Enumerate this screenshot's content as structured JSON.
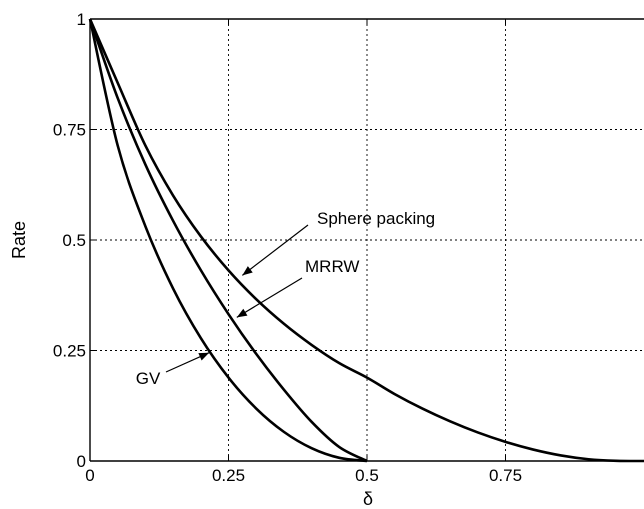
{
  "chart_data": {
    "type": "line",
    "xlabel": "δ",
    "ylabel": "Rate",
    "xlim": [
      0,
      1
    ],
    "ylim": [
      0,
      1
    ],
    "grid": true,
    "xticks": [
      {
        "value": 0,
        "label": "0"
      },
      {
        "value": 0.25,
        "label": "0.25"
      },
      {
        "value": 0.5,
        "label": "0.5"
      },
      {
        "value": 0.75,
        "label": "0.75"
      }
    ],
    "yticks": [
      {
        "value": 0,
        "label": "0"
      },
      {
        "value": 0.25,
        "label": "0.25"
      },
      {
        "value": 0.5,
        "label": "0.5"
      },
      {
        "value": 0.75,
        "label": "0.75"
      },
      {
        "value": 1,
        "label": "1"
      }
    ],
    "series": [
      {
        "name": "Sphere packing",
        "x": [
          0,
          0.05,
          0.1,
          0.15,
          0.2,
          0.25,
          0.3,
          0.35,
          0.4,
          0.45,
          0.5,
          0.55,
          0.6,
          0.65,
          0.7,
          0.75,
          0.8,
          0.85,
          0.9,
          0.95,
          1.0
        ],
        "y": [
          1.0,
          0.8555,
          0.7136,
          0.6006,
          0.5083,
          0.4313,
          0.3661,
          0.3105,
          0.2627,
          0.2214,
          0.1887,
          0.1514,
          0.1186,
          0.0898,
          0.0646,
          0.0433,
          0.0259,
          0.0126,
          0.004,
          0.0005,
          0.0
        ]
      },
      {
        "name": "MRRW",
        "x": [
          0,
          0.05,
          0.1,
          0.15,
          0.2,
          0.25,
          0.3,
          0.35,
          0.4,
          0.45,
          0.5
        ],
        "y": [
          1.0,
          0.8211,
          0.6707,
          0.5434,
          0.4318,
          0.3322,
          0.2423,
          0.1614,
          0.0887,
          0.0316,
          0.0
        ]
      },
      {
        "name": "GV",
        "x": [
          0,
          0.05,
          0.1,
          0.15,
          0.2,
          0.25,
          0.3,
          0.35,
          0.4,
          0.45,
          0.5
        ],
        "y": [
          1.0,
          0.7136,
          0.531,
          0.3902,
          0.2781,
          0.1887,
          0.1187,
          0.0659,
          0.029,
          0.0072,
          0.0
        ]
      }
    ],
    "annotations": [
      {
        "text": "Sphere packing",
        "target_x": 0.275,
        "target_y": 0.42
      },
      {
        "text": "MRRW",
        "target_x": 0.265,
        "target_y": 0.325
      },
      {
        "text": "GV",
        "target_x": 0.215,
        "target_y": 0.245
      }
    ]
  }
}
